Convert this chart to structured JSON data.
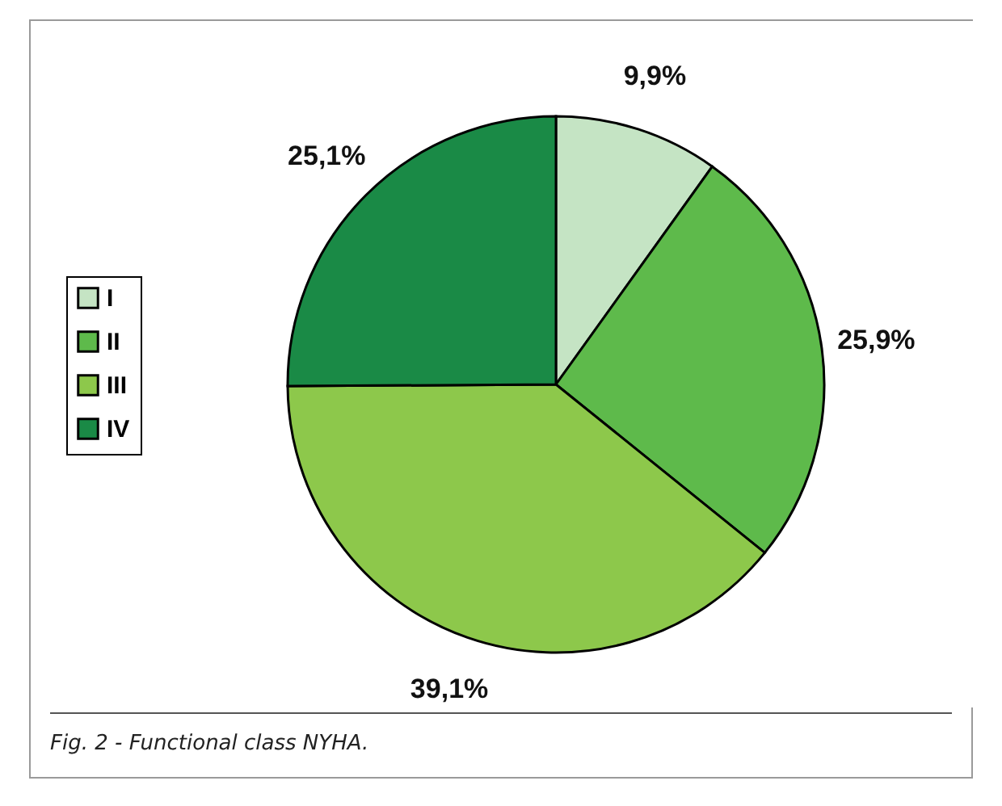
{
  "chart_data": {
    "type": "pie",
    "categories": [
      "I",
      "II",
      "III",
      "IV"
    ],
    "values": [
      9.9,
      25.9,
      39.1,
      25.1
    ],
    "colors": [
      "#c5e4c4",
      "#5eba4b",
      "#8dc84b",
      "#1a8a46"
    ],
    "value_labels": [
      "9,9%",
      "25,9%",
      "39,1%",
      "25,1%"
    ],
    "legend": "left",
    "annotations": [
      "Fig. 2 - Functional class NYHA."
    ]
  }
}
